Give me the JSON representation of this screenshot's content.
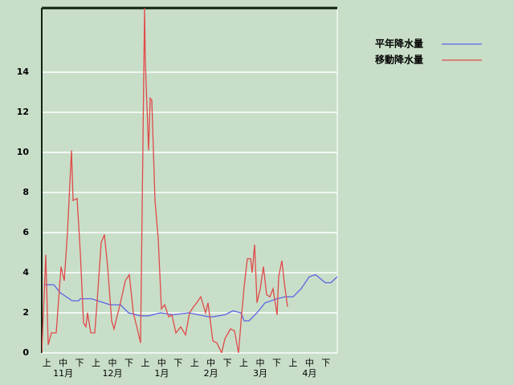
{
  "chart_data": {
    "type": "line",
    "legend": {
      "position": "top-right"
    },
    "grid": true,
    "xlim": [
      0,
      184
    ],
    "ylim": [
      0,
      17.2
    ],
    "yticks": [
      0,
      2,
      4,
      6,
      8,
      10,
      12,
      14
    ],
    "dekad_labels": [
      "上",
      "中",
      "下",
      "上",
      "中",
      "下",
      "上",
      "中",
      "下",
      "上",
      "中",
      "下",
      "上",
      "中",
      "下",
      "上",
      "中",
      "下"
    ],
    "month_labels": [
      "11月",
      "12月",
      "1月",
      "2月",
      "3月",
      "4月"
    ],
    "series": [
      {
        "name": "平年降水量",
        "color": "#5a64e6",
        "x": [
          2,
          7.5,
          11.5,
          19,
          23,
          24,
          31,
          42.5,
          49,
          54,
          61.5,
          66.5,
          69,
          74,
          81.5,
          91.5,
          104,
          106.5,
          114,
          119,
          124,
          126,
          129,
          134,
          139,
          146.5,
          151.5,
          156.5,
          161.5,
          166.5,
          170.5,
          176.5,
          180,
          184
        ],
        "values": [
          3.4,
          3.4,
          3.0,
          2.6,
          2.6,
          2.7,
          2.7,
          2.4,
          2.4,
          2.0,
          1.85,
          1.85,
          1.9,
          2.0,
          1.9,
          2.0,
          1.8,
          1.8,
          1.9,
          2.1,
          2.0,
          1.6,
          1.6,
          2.0,
          2.5,
          2.7,
          2.8,
          2.8,
          3.2,
          3.8,
          3.9,
          3.5,
          3.5,
          3.8
        ]
      },
      {
        "name": "移動降水量",
        "color": "#e04a4a",
        "x": [
          0,
          2.5,
          4,
          6,
          9,
          12,
          14,
          16,
          18.5,
          19.5,
          22,
          24,
          26,
          27.5,
          28.5,
          30.5,
          33,
          34.5,
          37,
          39,
          41,
          43.5,
          45,
          46.5,
          49,
          52,
          54.5,
          57,
          59.5,
          61.5,
          64,
          64.5,
          66.5,
          67.5,
          68.5,
          70.5,
          72.5,
          74.5,
          76.5,
          79,
          81,
          83.5,
          86.5,
          89.5,
          92,
          94.5,
          96.5,
          99,
          102,
          103.5,
          106.5,
          109,
          112,
          114,
          117.5,
          120,
          122.5,
          124,
          126,
          128,
          130,
          131,
          132.5,
          134,
          136,
          138,
          140,
          142,
          144,
          146.5,
          147.5,
          149.5,
          151,
          153
        ],
        "values": [
          0,
          4.9,
          0.4,
          1,
          1,
          4.3,
          3.6,
          6,
          10.1,
          7.6,
          7.7,
          5,
          1.5,
          1.3,
          2,
          1,
          1,
          2.6,
          5.5,
          5.9,
          4.3,
          1.6,
          1.2,
          1.7,
          2.5,
          3.6,
          3.9,
          2,
          1.2,
          0.5,
          17.2,
          14.5,
          10.1,
          12.7,
          12.6,
          7.6,
          5.7,
          2.2,
          2.4,
          1.8,
          1.9,
          1,
          1.3,
          0.9,
          2,
          2.3,
          2.5,
          2.8,
          2,
          2.5,
          0.6,
          0.5,
          0,
          0.7,
          1.2,
          1.1,
          0,
          1.5,
          3.3,
          4.7,
          4.7,
          4,
          5.4,
          2.5,
          3.2,
          4.3,
          2.9,
          2.8,
          3.2,
          1.9,
          3.8,
          4.6,
          3.5,
          2.3
        ]
      }
    ]
  }
}
